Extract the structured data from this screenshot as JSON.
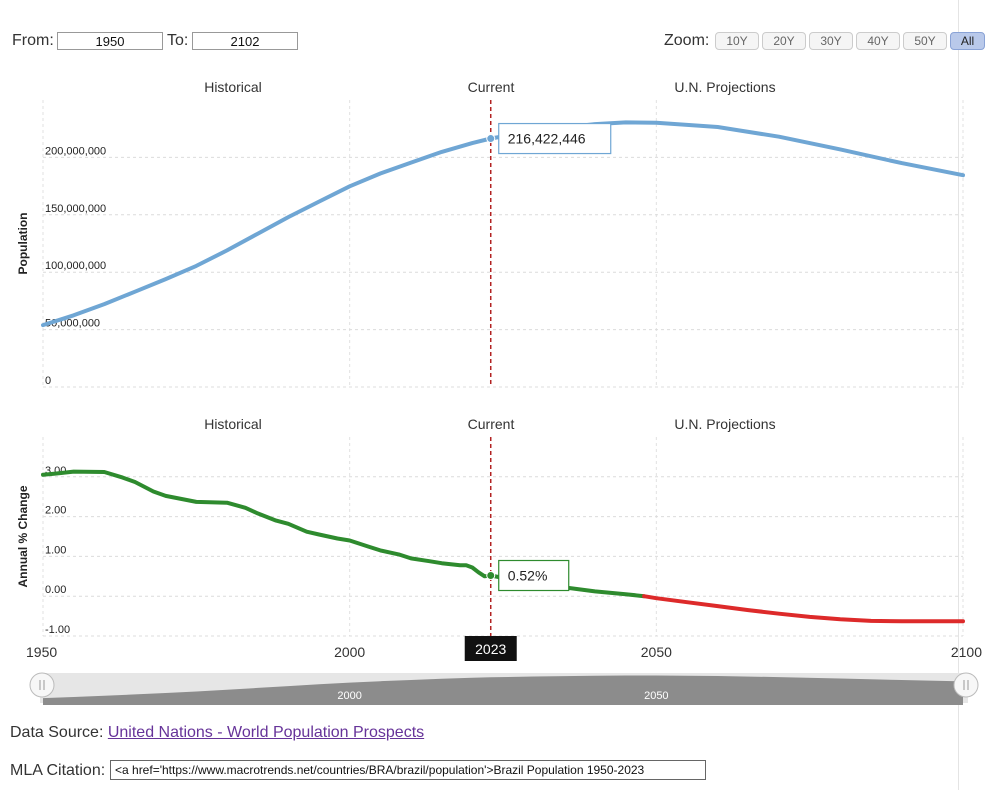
{
  "controls": {
    "from_label": "From:",
    "from_value": "1950",
    "to_label": "To:",
    "to_value": "2102",
    "zoom_label": "Zoom:",
    "zoom_buttons": [
      "10Y",
      "20Y",
      "30Y",
      "40Y",
      "50Y",
      "All"
    ],
    "zoom_active": "All"
  },
  "footer": {
    "source_label": "Data Source:",
    "source_link": "United Nations - World Population Prospects",
    "citation_label": "MLA Citation:",
    "citation_value": "<a href='https://www.macrotrends.net/countries/BRA/brazil/population'>Brazil Population 1950-2023"
  },
  "colors": {
    "population_line": "#6fa6d4",
    "change_historical": "#2e8b2e",
    "change_projection": "#dd2a2a",
    "current_marker": "#b22222",
    "navigator_fill": "#8c8c8c"
  },
  "chart_data": [
    {
      "type": "line",
      "ylabel": "Population",
      "section_labels": [
        "Historical",
        "Current",
        "U.N. Projections"
      ],
      "xlim": [
        1950,
        2100
      ],
      "ylim": [
        0,
        250000000
      ],
      "yticks": [
        "0",
        "50,000,000",
        "100,000,000",
        "150,000,000",
        "200,000,000"
      ],
      "ytick_values": [
        0,
        50000000,
        100000000,
        150000000,
        200000000
      ],
      "current_year": 2023,
      "tooltip": "216,422,446",
      "grid": true,
      "series": [
        {
          "x": [
            1950,
            1955,
            1960,
            1965,
            1970,
            1975,
            1980,
            1985,
            1990,
            1995,
            2000,
            2005,
            2010,
            2015,
            2020,
            2023,
            2030,
            2040,
            2045,
            2050,
            2060,
            2070,
            2080,
            2090,
            2100
          ],
          "values": [
            53900000,
            62500000,
            72200000,
            83000000,
            94000000,
            105500000,
            119000000,
            133500000,
            148000000,
            161500000,
            174800000,
            186000000,
            195500000,
            204800000,
            212500000,
            216422446,
            223000000,
            229000000,
            230500000,
            230200000,
            226500000,
            218000000,
            207000000,
            195000000,
            184500000
          ]
        }
      ]
    },
    {
      "type": "line",
      "ylabel": "Annual % Change",
      "section_labels": [
        "Historical",
        "Current",
        "U.N. Projections"
      ],
      "xlim": [
        1950,
        2100
      ],
      "ylim": [
        -1.0,
        4.0
      ],
      "yticks": [
        "-1.00",
        "0.00",
        "1.00",
        "2.00",
        "3.00"
      ],
      "ytick_values": [
        -1,
        0,
        1,
        2,
        3
      ],
      "xticks": [
        "1950",
        "2000",
        "2050",
        "2100"
      ],
      "xtick_values": [
        1950,
        2000,
        2050,
        2100
      ],
      "current_year_label": "2023",
      "current_year": 2023,
      "tooltip": "0.52%",
      "grid": true,
      "series": [
        {
          "x": [
            1950,
            1952,
            1955,
            1960,
            1963,
            1965,
            1968,
            1970,
            1975,
            1980,
            1983,
            1985,
            1988,
            1990,
            1993,
            1995,
            1998,
            2000,
            2003,
            2005,
            2008,
            2010,
            2013,
            2015,
            2018,
            2019,
            2020,
            2021,
            2022,
            2023,
            2025,
            2030,
            2035,
            2040,
            2045,
            2048
          ],
          "values": [
            3.05,
            3.08,
            3.13,
            3.12,
            2.98,
            2.87,
            2.63,
            2.52,
            2.37,
            2.35,
            2.22,
            2.08,
            1.9,
            1.82,
            1.62,
            1.55,
            1.45,
            1.4,
            1.25,
            1.15,
            1.05,
            0.95,
            0.88,
            0.83,
            0.78,
            0.78,
            0.72,
            0.6,
            0.5,
            0.52,
            0.46,
            0.33,
            0.22,
            0.12,
            0.05,
            0.0
          ]
        },
        {
          "x": [
            2048,
            2050,
            2055,
            2060,
            2065,
            2070,
            2075,
            2080,
            2085,
            2090,
            2095,
            2100
          ],
          "values": [
            0.0,
            -0.05,
            -0.15,
            -0.25,
            -0.35,
            -0.44,
            -0.52,
            -0.58,
            -0.62,
            -0.63,
            -0.63,
            -0.63
          ]
        }
      ]
    }
  ],
  "navigator": {
    "ticks": [
      "2000",
      "2050"
    ],
    "tick_values": [
      2000,
      2050
    ]
  }
}
